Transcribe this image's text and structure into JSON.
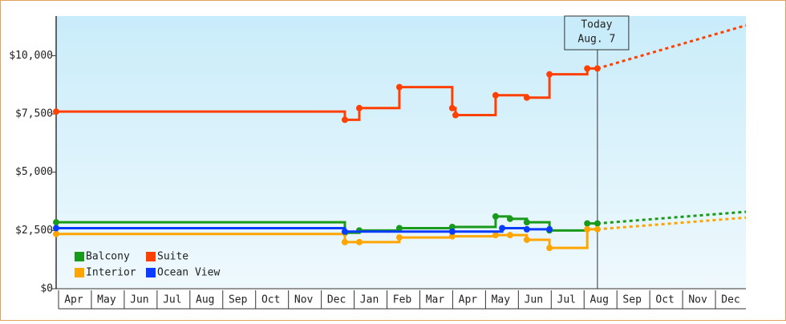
{
  "chart_data": {
    "type": "line",
    "step": true,
    "xlim": [
      0,
      21
    ],
    "ylim": [
      0,
      11700
    ],
    "yticks": [
      {
        "value": 0,
        "label": "$0"
      },
      {
        "value": 2500,
        "label": "$2,500"
      },
      {
        "value": 5000,
        "label": "$5,000"
      },
      {
        "value": 7500,
        "label": "$7,500"
      },
      {
        "value": 10000,
        "label": "$10,000"
      }
    ],
    "xticks": [
      {
        "value": 0.5,
        "label": "Apr"
      },
      {
        "value": 1.5,
        "label": "May"
      },
      {
        "value": 2.5,
        "label": "Jun"
      },
      {
        "value": 3.5,
        "label": "Jul"
      },
      {
        "value": 4.5,
        "label": "Aug"
      },
      {
        "value": 5.5,
        "label": "Sep"
      },
      {
        "value": 6.5,
        "label": "Oct"
      },
      {
        "value": 7.5,
        "label": "Nov"
      },
      {
        "value": 8.5,
        "label": "Dec"
      },
      {
        "value": 9.5,
        "label": "Jan"
      },
      {
        "value": 10.5,
        "label": "Feb"
      },
      {
        "value": 11.5,
        "label": "Mar"
      },
      {
        "value": 12.5,
        "label": "Apr"
      },
      {
        "value": 13.5,
        "label": "May"
      },
      {
        "value": 14.5,
        "label": "Jun"
      },
      {
        "value": 15.5,
        "label": "Jul"
      },
      {
        "value": 16.5,
        "label": "Aug"
      },
      {
        "value": 17.5,
        "label": "Sep"
      },
      {
        "value": 18.5,
        "label": "Oct"
      },
      {
        "value": 19.5,
        "label": "Nov"
      },
      {
        "value": 20.5,
        "label": "Dec"
      }
    ],
    "today": {
      "x": 16.48,
      "label": "Today",
      "date": "Aug. 7"
    },
    "forecast_x": 21,
    "series": [
      {
        "name": "Balcony",
        "color": "#1a9a1a",
        "x": [
          0,
          8.79,
          9.23,
          10.45,
          12.06,
          13.38,
          13.82,
          14.33,
          15.02,
          16.17,
          16.48
        ],
        "values": [
          2850,
          2400,
          2500,
          2600,
          2650,
          3100,
          3000,
          2850,
          2500,
          2800,
          2800
        ],
        "forecast_value": 3300
      },
      {
        "name": "Suite",
        "color": "#ff4000",
        "x": [
          0,
          8.79,
          9.23,
          10.45,
          12.06,
          12.16,
          13.38,
          14.33,
          15.02,
          16.17,
          16.48
        ],
        "values": [
          7600,
          7250,
          7750,
          8650,
          7750,
          7450,
          8300,
          8200,
          9200,
          9450,
          9450
        ],
        "forecast_value": 11300
      },
      {
        "name": "Interior",
        "color": "#ffa500",
        "x": [
          0,
          8.79,
          9.23,
          10.45,
          12.06,
          13.38,
          13.82,
          14.33,
          15.02,
          16.17,
          16.48
        ],
        "values": [
          2350,
          2000,
          2000,
          2200,
          2250,
          2300,
          2300,
          2100,
          1750,
          2550,
          2550
        ],
        "forecast_value": 3050
      },
      {
        "name": "Ocean View",
        "color": "#0a3cff",
        "x": [
          0,
          8.79,
          12.06,
          13.58,
          14.33,
          15.02
        ],
        "values": [
          2600,
          2450,
          2450,
          2600,
          2550,
          2550
        ]
      }
    ]
  }
}
